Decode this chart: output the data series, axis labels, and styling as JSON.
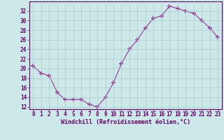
{
  "hours": [
    0,
    1,
    2,
    3,
    4,
    5,
    6,
    7,
    8,
    9,
    10,
    11,
    12,
    13,
    14,
    15,
    16,
    17,
    18,
    19,
    20,
    21,
    22,
    23
  ],
  "values": [
    20.5,
    19.0,
    18.5,
    15.0,
    13.5,
    13.5,
    13.5,
    12.5,
    12.0,
    14.0,
    17.0,
    21.0,
    24.0,
    26.0,
    28.5,
    30.5,
    31.0,
    33.0,
    32.5,
    32.0,
    31.5,
    30.0,
    28.5,
    26.5
  ],
  "line_color": "#993399",
  "marker": "+",
  "marker_size": 4,
  "bg_color": "#cce8e8",
  "grid_color": "#aacccc",
  "axis_label_color": "#660066",
  "tick_color": "#660066",
  "xlabel": "Windchill (Refroidissement éolien,°C)",
  "ylim": [
    11.5,
    34
  ],
  "xlim": [
    -0.5,
    23.5
  ],
  "yticks": [
    12,
    14,
    16,
    18,
    20,
    22,
    24,
    26,
    28,
    30,
    32
  ],
  "xticks": [
    0,
    1,
    2,
    3,
    4,
    5,
    6,
    7,
    8,
    9,
    10,
    11,
    12,
    13,
    14,
    15,
    16,
    17,
    18,
    19,
    20,
    21,
    22,
    23
  ],
  "spine_color": "#660066",
  "font_name": "monospace",
  "tick_fontsize": 5.5,
  "xlabel_fontsize": 6.0
}
